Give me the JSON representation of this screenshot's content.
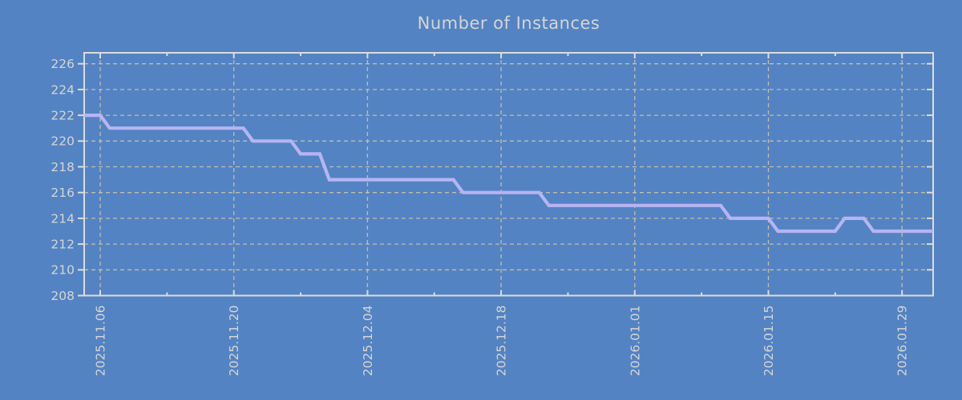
{
  "title": "Number of Instances",
  "colors": {
    "background": "#5383c3",
    "line": "#b7b4f2",
    "grid": "#c4bdab",
    "axis": "#dcdcdc",
    "text": "#d5d5d5"
  },
  "chart_data": {
    "type": "line",
    "title": "Number of Instances",
    "xlabel": "",
    "ylabel": "",
    "legend": false,
    "grid": true,
    "grid_style": "dashed",
    "ylim": [
      208,
      226.85
    ],
    "y_ticks": [
      208,
      210,
      212,
      214,
      216,
      218,
      220,
      222,
      224,
      226
    ],
    "x_major_ticks": [
      "2025.11.06",
      "2025.11.20",
      "2025.12.04",
      "2025.12.18",
      "2026.01.01",
      "2026.01.15",
      "2026.01.29"
    ],
    "x_minor_ticks": [
      "2025.11.13",
      "2025.11.27",
      "2025.12.11",
      "2025.12.25",
      "2026.01.08",
      "2026.01.22"
    ],
    "x_range": [
      "2025.11.04",
      "2026.02.01"
    ],
    "series": [
      {
        "name": "instances",
        "sampling": "daily",
        "steps": [
          {
            "from": "2025.11.04",
            "to": "2025.11.06",
            "value": 222
          },
          {
            "from": "2025.11.07",
            "to": "2025.11.21",
            "value": 221
          },
          {
            "from": "2025.11.22",
            "to": "2025.11.26",
            "value": 220
          },
          {
            "from": "2025.11.27",
            "to": "2025.11.29",
            "value": 219
          },
          {
            "from": "2025.11.30",
            "to": "2025.12.13",
            "value": 217
          },
          {
            "from": "2025.12.14",
            "to": "2025.12.22",
            "value": 216
          },
          {
            "from": "2025.12.23",
            "to": "2026.01.10",
            "value": 215
          },
          {
            "from": "2026.01.11",
            "to": "2026.01.15",
            "value": 214
          },
          {
            "from": "2026.01.16",
            "to": "2026.01.22",
            "value": 213
          },
          {
            "from": "2026.01.23",
            "to": "2026.01.25",
            "value": 214
          },
          {
            "from": "2026.01.26",
            "to": "2026.02.01",
            "value": 213
          }
        ]
      }
    ]
  }
}
